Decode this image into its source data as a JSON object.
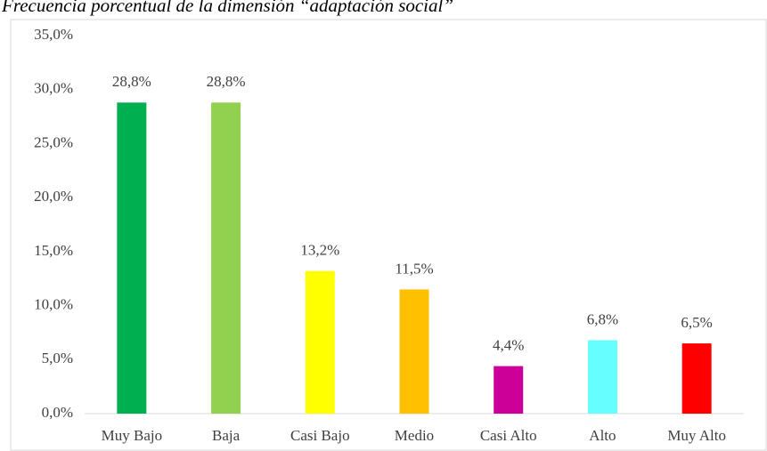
{
  "chart_data": {
    "type": "bar",
    "title": "Frecuencia porcentual de la dimensión “adaptación social”",
    "categories": [
      "Muy Bajo",
      "Baja",
      "Casi Bajo",
      "Medio",
      "Casi Alto",
      "Alto",
      "Muy Alto"
    ],
    "values": [
      28.8,
      28.8,
      13.2,
      11.5,
      4.4,
      6.8,
      6.5
    ],
    "value_labels": [
      "28,8%",
      "28,8%",
      "13,2%",
      "11,5%",
      "4,4%",
      "6,8%",
      "6,5%"
    ],
    "colors": [
      "#00b050",
      "#92d050",
      "#ffff00",
      "#ffc000",
      "#cc0099",
      "#66ffff",
      "#ff0000"
    ],
    "ylim": [
      0,
      35
    ],
    "yticks": [
      {
        "value": 0,
        "label": "0,0%"
      },
      {
        "value": 5,
        "label": "5,0%"
      },
      {
        "value": 10,
        "label": "10,0%"
      },
      {
        "value": 15,
        "label": "15,0%"
      },
      {
        "value": 20,
        "label": "20,0%"
      },
      {
        "value": 25,
        "label": "25,0%"
      },
      {
        "value": 30,
        "label": "30,0%"
      },
      {
        "value": 35,
        "label": "35,0%"
      }
    ],
    "grid": false
  }
}
